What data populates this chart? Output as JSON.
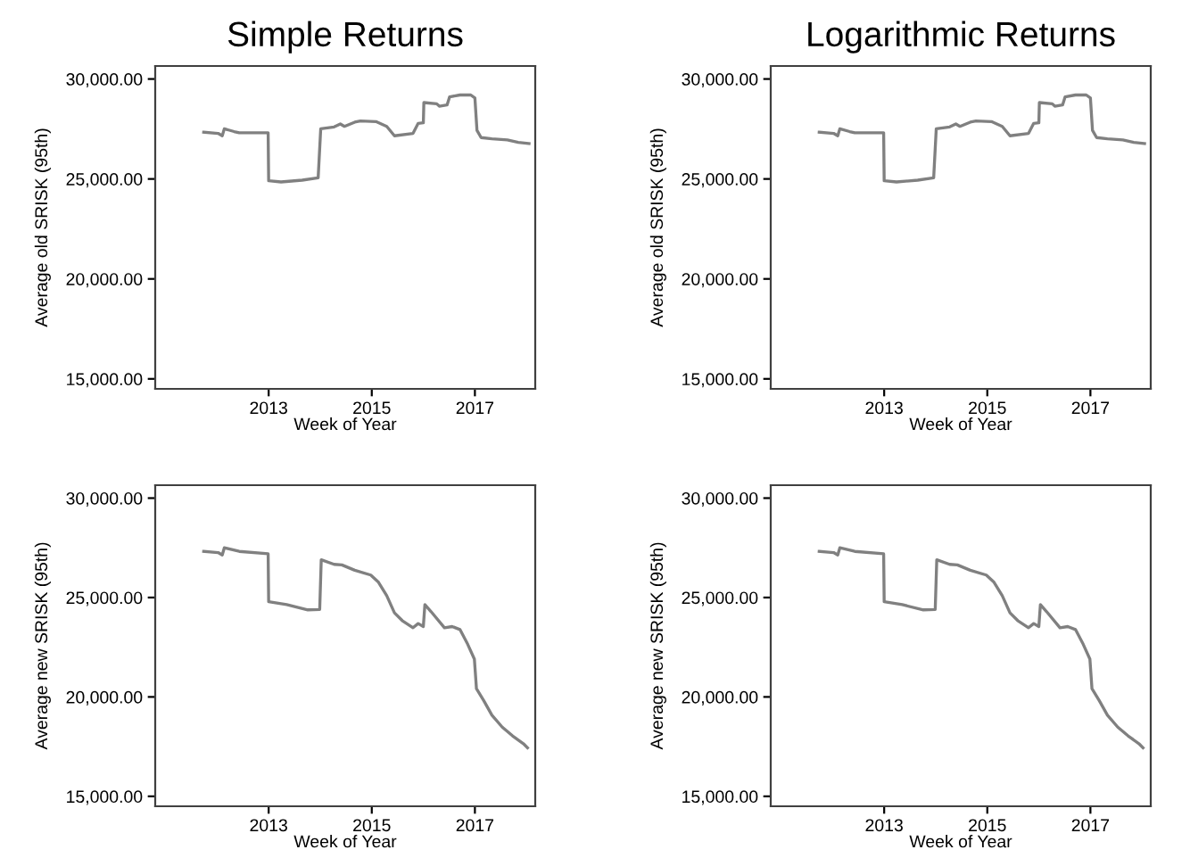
{
  "chart_data": [
    {
      "type": "line",
      "title": "Simple Returns",
      "xlabel": "Week of Year",
      "ylabel": "Average old SRISK (95th)",
      "xlim": [
        2010.8,
        2018.17
      ],
      "xticks": [
        2013,
        2015,
        2017
      ],
      "ylim": [
        14500,
        30650
      ],
      "yticks": [
        {
          "value": 15000,
          "label": "15,000.00"
        },
        {
          "value": 20000,
          "label": "20,000.00"
        },
        {
          "value": 25000,
          "label": "25,000.00"
        },
        {
          "value": 30000,
          "label": "30,000.00"
        }
      ],
      "grid": false,
      "legend": false,
      "series": [
        {
          "color": "#808080",
          "x": [
            2011.74,
            2012.02,
            2012.1,
            2012.14,
            2012.33,
            2012.43,
            2012.99,
            2013.0,
            2013.24,
            2013.65,
            2013.96,
            2014.01,
            2014.27,
            2014.39,
            2014.47,
            2014.67,
            2014.78,
            2015.08,
            2015.29,
            2015.44,
            2015.8,
            2015.9,
            2016.0,
            2016.01,
            2016.26,
            2016.31,
            2016.46,
            2016.51,
            2016.71,
            2016.92,
            2017.0,
            2017.04,
            2017.12,
            2017.33,
            2017.63,
            2017.84,
            2018.05
          ],
          "values": [
            27340,
            27280,
            27160,
            27510,
            27370,
            27310,
            27310,
            24910,
            24850,
            24940,
            25060,
            27510,
            27600,
            27750,
            27630,
            27840,
            27900,
            27870,
            27630,
            27160,
            27280,
            27780,
            27810,
            28820,
            28760,
            28640,
            28700,
            29110,
            29200,
            29200,
            29050,
            27430,
            27070,
            27010,
            26950,
            26830,
            26770
          ]
        }
      ]
    },
    {
      "type": "line",
      "title": "Logarithmic Returns",
      "xlabel": "Week of Year",
      "ylabel": "Average old SRISK (95th)",
      "xlim": [
        2010.8,
        2018.17
      ],
      "xticks": [
        2013,
        2015,
        2017
      ],
      "ylim": [
        14500,
        30650
      ],
      "yticks": [
        {
          "value": 15000,
          "label": "15,000.00"
        },
        {
          "value": 20000,
          "label": "20,000.00"
        },
        {
          "value": 25000,
          "label": "25,000.00"
        },
        {
          "value": 30000,
          "label": "30,000.00"
        }
      ],
      "grid": false,
      "legend": false,
      "series": [
        {
          "color": "#808080",
          "x": [
            2011.74,
            2012.02,
            2012.1,
            2012.14,
            2012.33,
            2012.43,
            2012.99,
            2013.0,
            2013.24,
            2013.65,
            2013.96,
            2014.01,
            2014.27,
            2014.39,
            2014.47,
            2014.67,
            2014.78,
            2015.08,
            2015.29,
            2015.44,
            2015.8,
            2015.9,
            2016.0,
            2016.01,
            2016.26,
            2016.31,
            2016.46,
            2016.51,
            2016.71,
            2016.92,
            2017.0,
            2017.04,
            2017.12,
            2017.33,
            2017.63,
            2017.84,
            2018.05
          ],
          "values": [
            27340,
            27280,
            27160,
            27510,
            27370,
            27310,
            27310,
            24910,
            24850,
            24940,
            25060,
            27510,
            27600,
            27750,
            27630,
            27840,
            27900,
            27870,
            27630,
            27160,
            27280,
            27780,
            27810,
            28820,
            28760,
            28640,
            28700,
            29110,
            29200,
            29200,
            29050,
            27430,
            27070,
            27010,
            26950,
            26830,
            26770
          ]
        }
      ]
    },
    {
      "type": "line",
      "xlabel": "Week of Year",
      "ylabel": "Average new SRISK (95th)",
      "xlim": [
        2010.8,
        2018.17
      ],
      "xticks": [
        2013,
        2015,
        2017
      ],
      "ylim": [
        14500,
        30650
      ],
      "yticks": [
        {
          "value": 15000,
          "label": "15,000.00"
        },
        {
          "value": 20000,
          "label": "20,000.00"
        },
        {
          "value": 25000,
          "label": "25,000.00"
        },
        {
          "value": 30000,
          "label": "30,000.00"
        }
      ],
      "grid": false,
      "legend": false,
      "series": [
        {
          "color": "#808080",
          "x": [
            2011.74,
            2012.02,
            2012.1,
            2012.14,
            2012.43,
            2012.99,
            2013.0,
            2013.35,
            2013.76,
            2013.99,
            2014.02,
            2014.27,
            2014.42,
            2014.67,
            2014.98,
            2015.13,
            2015.29,
            2015.44,
            2015.59,
            2015.8,
            2015.9,
            2016.0,
            2016.03,
            2016.15,
            2016.41,
            2016.56,
            2016.71,
            2016.86,
            2016.99,
            2017.03,
            2017.17,
            2017.33,
            2017.53,
            2017.73,
            2017.94,
            2018.02
          ],
          "values": [
            27320,
            27260,
            27140,
            27500,
            27320,
            27200,
            24790,
            24640,
            24380,
            24400,
            26900,
            26670,
            26640,
            26370,
            26130,
            25770,
            25090,
            24230,
            23840,
            23480,
            23690,
            23540,
            24640,
            24290,
            23480,
            23540,
            23390,
            22650,
            21900,
            20420,
            19820,
            19080,
            18480,
            18040,
            17650,
            17440
          ]
        }
      ]
    },
    {
      "type": "line",
      "xlabel": "Week of Year",
      "ylabel": "Average new SRISK (95th)",
      "xlim": [
        2010.8,
        2018.17
      ],
      "xticks": [
        2013,
        2015,
        2017
      ],
      "ylim": [
        14500,
        30650
      ],
      "yticks": [
        {
          "value": 15000,
          "label": "15,000.00"
        },
        {
          "value": 20000,
          "label": "20,000.00"
        },
        {
          "value": 25000,
          "label": "25,000.00"
        },
        {
          "value": 30000,
          "label": "30,000.00"
        }
      ],
      "grid": false,
      "legend": false,
      "series": [
        {
          "color": "#808080",
          "x": [
            2011.74,
            2012.02,
            2012.1,
            2012.14,
            2012.43,
            2012.99,
            2013.0,
            2013.35,
            2013.76,
            2013.99,
            2014.02,
            2014.27,
            2014.42,
            2014.67,
            2014.98,
            2015.13,
            2015.29,
            2015.44,
            2015.59,
            2015.8,
            2015.9,
            2016.0,
            2016.03,
            2016.15,
            2016.41,
            2016.56,
            2016.71,
            2016.86,
            2016.99,
            2017.03,
            2017.17,
            2017.33,
            2017.53,
            2017.73,
            2017.94,
            2018.02
          ],
          "values": [
            27320,
            27260,
            27140,
            27500,
            27320,
            27200,
            24790,
            24640,
            24380,
            24400,
            26900,
            26670,
            26640,
            26370,
            26130,
            25770,
            25090,
            24230,
            23840,
            23480,
            23690,
            23540,
            24640,
            24290,
            23480,
            23540,
            23390,
            22650,
            21900,
            20420,
            19820,
            19080,
            18480,
            18040,
            17650,
            17440
          ]
        }
      ]
    }
  ]
}
